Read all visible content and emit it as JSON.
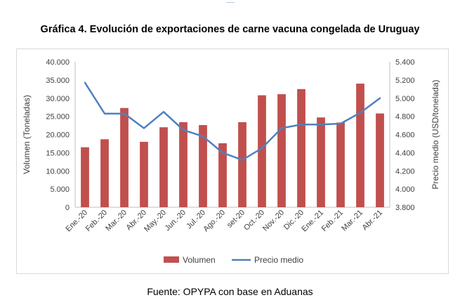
{
  "title": "Gráfica 4. Evolución de exportaciones de carne vacuna congelada de Uruguay",
  "source": "Fuente: OPYPA con base en Aduanas",
  "chart_data": {
    "type": "bar",
    "categories": [
      "Ene.-20",
      "Feb.-20",
      "Mar.-20",
      "Abr.-20",
      "May.-20",
      "Jun.-20",
      "Jul.-20",
      "Ago.-20",
      "set-20",
      "Oct.-20",
      "Nov.-20",
      "Dic.-20",
      "Ene.-21",
      "Feb.-21",
      "Mar.-21",
      "Abr.-21"
    ],
    "series": [
      {
        "name": "Volumen",
        "type": "bar",
        "axis": "left",
        "color": "#c0504d",
        "values": [
          16500,
          18700,
          27300,
          18000,
          22000,
          23400,
          22600,
          17600,
          23400,
          30800,
          31100,
          32500,
          24700,
          23300,
          34000,
          25800
        ]
      },
      {
        "name": "Precio medio",
        "type": "line",
        "axis": "right",
        "color": "#4f81bd",
        "values": [
          5170,
          4830,
          4830,
          4670,
          4850,
          4650,
          4580,
          4400,
          4320,
          4450,
          4670,
          4710,
          4710,
          4720,
          4840,
          5000
        ]
      }
    ],
    "ylabel": "Volumen (Toneladas)",
    "ylabel_right": "Precio medio (USD/tonelada)",
    "ylim": [
      0,
      40000
    ],
    "ylim_right": [
      3800,
      5400
    ],
    "yticks": [
      "0",
      "5.000",
      "10.000",
      "15.000",
      "20.000",
      "25.000",
      "30.000",
      "35.000",
      "40.000"
    ],
    "yticks_right": [
      "3.800",
      "4.000",
      "4.200",
      "4.400",
      "4.600",
      "4.800",
      "5.000",
      "5.200",
      "5.400"
    ],
    "grid": false,
    "legend_position": "bottom"
  }
}
